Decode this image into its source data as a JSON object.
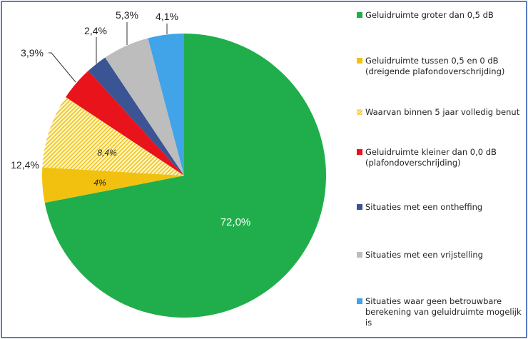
{
  "chart_data": {
    "type": "pie",
    "title": "",
    "slices": [
      {
        "name": "Geluidruimte groter dan 0,5 dB",
        "value": 72.0,
        "label": "72,0%",
        "color": "#1fae4b"
      },
      {
        "name": "Geluidruimte tussen 0,5 en 0 dB (dreigende plafondoverschrijding)",
        "value": 4.0,
        "label": "4%",
        "color": "#f2c10f"
      },
      {
        "name": "Waarvan binnen 5 jaar volledig benut",
        "value": 8.4,
        "label": "8,4%",
        "color": "#f5d64a",
        "pattern": "hatched"
      },
      {
        "name": "Geluidruimte kleiner dan 0,0 dB (plafondoverschrijding)",
        "value": 3.9,
        "label": "3,9%",
        "color": "#e8131b"
      },
      {
        "name": "Situaties met een ontheffing",
        "value": 2.4,
        "label": "2,4%",
        "color": "#3a5494"
      },
      {
        "name": "Situaties met een vrijstelling",
        "value": 5.3,
        "label": "5,3%",
        "color": "#bdbdbd"
      },
      {
        "name": "Situaties waar geen betrouwbare berekening van geluidruimte mogelijk is",
        "value": 4.1,
        "label": "4,1%",
        "color": "#41a3e8"
      }
    ],
    "group_label": "12,4%",
    "legend_position": "right"
  }
}
